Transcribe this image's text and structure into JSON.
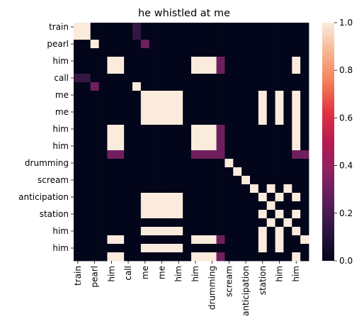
{
  "chart_data": {
    "type": "heatmap",
    "title": "he whistled at me",
    "row_labels": [
      "train",
      "pearl",
      "him",
      "call",
      "me",
      "me",
      "him",
      "him",
      "drumming",
      "scream",
      "anticipation",
      "station",
      "him",
      "him"
    ],
    "col_labels": [
      "train",
      "pearl",
      "him",
      "call",
      "me",
      "me",
      "him",
      "him",
      "drumming",
      "scream",
      "anticipation",
      "station",
      "him",
      "him"
    ],
    "shown_row_label_indices": [
      0,
      2,
      4,
      6,
      8,
      10,
      12,
      14,
      16,
      18,
      20,
      22,
      24,
      26
    ],
    "shown_col_label_indices": [
      0,
      2,
      4,
      6,
      8,
      10,
      12,
      14,
      16,
      18,
      20,
      22,
      24,
      26
    ],
    "n_rows": 28,
    "n_cols": 28,
    "matrix": [
      [
        1,
        1,
        0,
        0,
        0,
        0,
        0,
        0.15,
        0,
        0,
        0,
        0,
        0,
        0,
        0,
        0,
        0,
        0,
        0,
        0,
        0,
        0,
        0,
        0,
        0,
        0,
        0,
        0
      ],
      [
        1,
        1,
        0,
        0,
        0,
        0,
        0,
        0.15,
        0,
        0,
        0,
        0,
        0,
        0,
        0,
        0,
        0,
        0,
        0,
        0,
        0,
        0,
        0,
        0,
        0,
        0,
        0,
        0
      ],
      [
        0,
        0,
        1,
        0,
        0,
        0,
        0,
        0,
        0.3,
        0,
        0,
        0,
        0,
        0,
        0,
        0,
        0,
        0,
        0,
        0,
        0,
        0,
        0,
        0,
        0,
        0,
        0,
        0
      ],
      [
        0,
        0,
        0,
        0,
        0,
        0,
        0,
        0,
        0,
        0,
        0,
        0,
        0,
        0,
        0,
        0,
        0,
        0,
        0,
        0,
        0,
        0,
        0,
        0,
        0,
        0,
        0,
        0
      ],
      [
        0,
        0,
        0,
        0,
        1,
        1,
        0,
        0,
        0,
        0,
        0,
        0,
        0,
        0,
        1,
        1,
        1,
        0.3,
        0,
        0,
        0,
        0,
        0,
        0,
        0,
        0,
        1,
        0
      ],
      [
        0,
        0,
        0,
        0,
        1,
        1,
        0,
        0,
        0,
        0,
        0,
        0,
        0,
        0,
        1,
        1,
        1,
        0.3,
        0,
        0,
        0,
        0,
        0,
        0,
        0,
        0,
        1,
        0
      ],
      [
        0.15,
        0.15,
        0,
        0,
        0,
        0,
        0,
        0,
        0,
        0,
        0,
        0,
        0,
        0,
        0,
        0,
        0,
        0,
        0,
        0,
        0,
        0,
        0,
        0,
        0,
        0,
        0,
        0
      ],
      [
        0,
        0,
        0.3,
        0,
        0,
        0,
        0,
        1,
        0,
        0,
        0,
        0,
        0,
        0,
        0,
        0,
        0,
        0,
        0,
        0,
        0,
        0,
        0,
        0,
        0,
        0,
        0,
        0
      ],
      [
        0,
        0,
        0,
        0,
        0,
        0,
        0,
        0,
        1,
        1,
        1,
        1,
        1,
        0,
        0,
        0,
        0,
        0,
        0,
        0,
        0,
        0,
        1,
        0,
        1,
        0,
        1,
        0
      ],
      [
        0,
        0,
        0,
        0,
        0,
        0,
        0,
        0,
        1,
        1,
        1,
        1,
        1,
        0,
        0,
        0,
        0,
        0,
        0,
        0,
        0,
        0,
        1,
        0,
        1,
        0,
        1,
        0
      ],
      [
        0,
        0,
        0,
        0,
        0,
        0,
        0,
        0,
        1,
        1,
        1,
        1,
        1,
        0,
        0,
        0,
        0,
        0,
        0,
        0,
        0,
        0,
        1,
        0,
        1,
        0,
        1,
        0
      ],
      [
        0,
        0,
        0,
        0,
        0,
        0,
        0,
        0,
        1,
        1,
        1,
        1,
        1,
        0,
        0,
        0,
        0,
        0,
        0,
        0,
        0,
        0,
        1,
        0,
        1,
        0,
        1,
        0
      ],
      [
        0,
        0,
        0,
        0,
        1,
        1,
        0,
        0,
        0,
        0,
        0,
        0,
        0,
        0,
        1,
        1,
        1,
        0.3,
        0,
        0,
        0,
        0,
        0,
        0,
        0,
        0,
        1,
        0
      ],
      [
        0,
        0,
        0,
        0,
        1,
        1,
        0,
        0,
        0,
        0,
        0,
        0,
        0,
        0,
        1,
        1,
        1,
        0.3,
        0,
        0,
        0,
        0,
        0,
        0,
        0,
        0,
        1,
        0
      ],
      [
        0,
        0,
        0,
        0,
        1,
        1,
        0,
        0,
        0,
        0,
        0,
        0,
        0,
        0,
        1,
        1,
        1,
        0.3,
        0,
        0,
        0,
        0,
        0,
        0,
        0,
        0,
        1,
        0
      ],
      [
        0,
        0,
        0,
        0,
        0.3,
        0.3,
        0,
        0,
        0,
        0,
        0,
        0,
        0,
        0,
        0.3,
        0.3,
        0.3,
        0.3,
        0,
        0,
        0,
        0,
        0,
        0,
        0,
        0,
        0.3,
        0.3
      ],
      [
        0,
        0,
        0,
        0,
        0,
        0,
        0,
        0,
        0,
        0,
        0,
        0,
        0,
        0,
        0,
        0,
        0,
        0,
        1,
        0,
        0,
        0,
        0,
        0,
        0,
        0,
        0,
        0
      ],
      [
        0,
        0,
        0,
        0,
        0,
        0,
        0,
        0,
        0,
        0,
        0,
        0,
        0,
        0,
        0,
        0,
        0,
        0,
        0,
        1,
        0,
        0,
        0,
        0,
        0,
        0,
        0,
        0
      ],
      [
        0,
        0,
        0,
        0,
        0,
        0,
        0,
        0,
        0,
        0,
        0,
        0,
        0,
        0,
        0,
        0,
        0,
        0,
        0,
        0,
        1,
        0,
        0,
        0,
        0,
        0,
        0,
        0
      ],
      [
        0,
        0,
        0,
        0,
        0,
        0,
        0,
        0,
        0,
        0,
        0,
        0,
        0,
        0,
        0,
        0,
        0,
        0,
        0,
        0,
        0,
        1,
        0,
        1,
        0,
        1,
        0,
        0
      ],
      [
        0,
        0,
        0,
        0,
        0,
        0,
        0,
        0,
        1,
        1,
        1,
        1,
        1,
        0,
        0,
        0,
        0,
        0,
        0,
        0,
        0,
        0,
        1,
        0,
        1,
        0,
        1,
        0
      ],
      [
        0,
        0,
        0,
        0,
        0,
        0,
        0,
        0,
        1,
        1,
        1,
        1,
        1,
        0,
        0,
        0,
        0,
        0,
        0,
        0,
        0,
        0,
        0,
        1,
        0,
        0,
        0,
        0
      ],
      [
        0,
        0,
        0,
        0,
        0,
        0,
        0,
        0,
        1,
        1,
        1,
        1,
        1,
        0,
        0,
        0,
        0,
        0,
        0,
        0,
        0,
        0,
        1,
        0,
        1,
        0,
        1,
        0
      ],
      [
        0,
        0,
        0,
        0,
        0,
        0,
        0,
        0,
        0,
        0,
        0,
        0,
        0,
        0,
        0,
        0,
        0,
        0,
        0,
        0,
        0,
        0,
        0,
        1,
        0,
        1,
        0,
        0
      ],
      [
        0,
        0,
        0,
        0,
        0,
        0,
        0,
        0,
        1,
        1,
        1,
        1,
        1,
        0,
        0,
        0,
        0,
        0,
        0,
        0,
        0,
        0,
        1,
        0,
        1,
        0,
        1,
        0
      ],
      [
        0,
        0,
        0,
        0,
        1,
        1,
        0,
        0,
        0,
        0,
        0,
        0,
        0,
        0,
        1,
        1,
        1,
        0.3,
        0,
        0,
        0,
        0,
        1,
        0,
        1,
        0,
        0,
        1
      ],
      [
        0,
        0,
        0,
        0,
        0,
        0,
        0,
        0,
        1,
        1,
        1,
        1,
        1,
        0,
        0,
        0,
        0,
        0,
        0,
        0,
        0,
        0,
        1,
        0,
        1,
        0,
        0,
        0
      ],
      [
        0,
        0,
        0,
        0,
        1,
        1,
        0,
        0,
        0,
        0,
        0,
        0,
        0,
        0,
        1,
        1,
        1,
        0.3,
        0,
        0,
        0,
        0,
        0,
        0,
        0,
        0,
        1,
        0
      ]
    ],
    "colorbar": {
      "min": 0.0,
      "max": 1.0,
      "ticks": [
        "0.0",
        "0.2",
        "0.4",
        "0.6",
        "0.8",
        "1.0"
      ],
      "tick_values": [
        0.0,
        0.2,
        0.4,
        0.6,
        0.8,
        1.0
      ]
    },
    "colormap": "rocket",
    "colormap_stops": [
      "#03051a",
      "#2b1540",
      "#5c1e5c",
      "#8b2160",
      "#b81b51",
      "#e13342",
      "#f47e57",
      "#f6b48f",
      "#faebdd"
    ]
  }
}
